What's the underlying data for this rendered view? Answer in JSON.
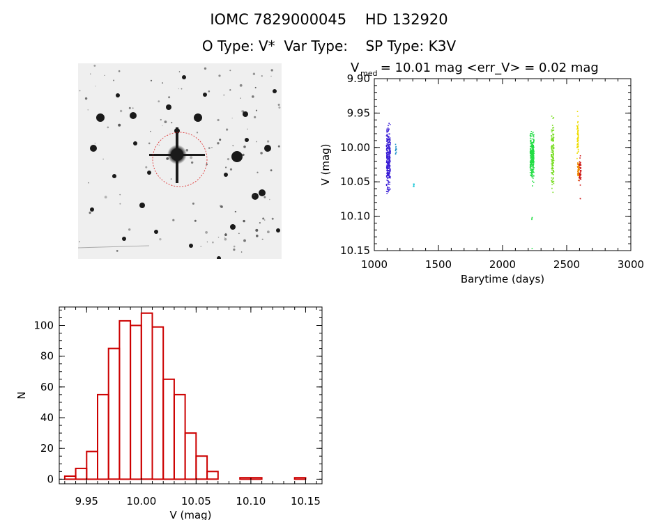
{
  "header": {
    "title": "IOMC 7829000045    HD 132920",
    "subtitle": "O Type: V*  Var Type:    SP Type: K3V"
  },
  "chart_data": [
    {
      "type": "scatter",
      "title_main": "V",
      "title_sub": "med",
      "title_rest": " = 10.01 mag <err_V> = 0.02 mag",
      "xlabel": "Barytime (days)",
      "ylabel": "V (mag)",
      "xlim": [
        1000,
        3000
      ],
      "ylim": [
        10.15,
        9.9
      ],
      "y_inverted": true,
      "xticks": [
        1000,
        1500,
        2000,
        2500,
        3000
      ],
      "yticks": [
        9.9,
        9.95,
        10.0,
        10.05,
        10.1,
        10.15
      ],
      "ytick_labels": [
        "9.90",
        "9.95",
        "10.00",
        "10.05",
        "10.10",
        "10.15"
      ],
      "clusters": [
        {
          "x": [
            1095,
            1125
          ],
          "y": [
            9.955,
            10.075
          ],
          "color": "#3b1fd6",
          "n": 300
        },
        {
          "x": [
            1165,
            1172
          ],
          "y": [
            9.985,
            10.02
          ],
          "color": "#1e90c8",
          "n": 12
        },
        {
          "x": [
            1305,
            1310
          ],
          "y": [
            10.05,
            10.06
          ],
          "color": "#20c8d8",
          "n": 8
        },
        {
          "x": [
            2215,
            2245
          ],
          "y": [
            9.965,
            10.06
          ],
          "color": "#22dd44",
          "n": 260
        },
        {
          "x": [
            2228,
            2232
          ],
          "y": [
            10.1,
            10.108
          ],
          "color": "#22dd44",
          "n": 3
        },
        {
          "x": [
            2230,
            2232
          ],
          "y": [
            10.145,
            10.148
          ],
          "color": "#22dd44",
          "n": 1
        },
        {
          "x": [
            2380,
            2400
          ],
          "y": [
            9.945,
            10.08
          ],
          "color": "#77dd22",
          "n": 140
        },
        {
          "x": [
            2580,
            2592
          ],
          "y": [
            9.94,
            10.03
          ],
          "color": "#eedd00",
          "n": 60
        },
        {
          "x": [
            2585,
            2600
          ],
          "y": [
            10.015,
            10.05
          ],
          "color": "#ee8800",
          "n": 50
        },
        {
          "x": [
            2598,
            2612
          ],
          "y": [
            10.005,
            10.06
          ],
          "color": "#cc1111",
          "n": 40
        },
        {
          "x": [
            2605,
            2610
          ],
          "y": [
            10.072,
            10.077
          ],
          "color": "#cc1111",
          "n": 2
        }
      ]
    },
    {
      "type": "bar",
      "xlabel": "V (mag)",
      "ylabel": "N",
      "xlim": [
        9.925,
        10.165
      ],
      "ylim": [
        -3,
        112
      ],
      "xticks": [
        9.95,
        10.0,
        10.05,
        10.1,
        10.15
      ],
      "xtick_labels": [
        "9.95",
        "10.00",
        "10.05",
        "10.10",
        "10.15"
      ],
      "yticks": [
        0,
        20,
        40,
        60,
        80,
        100
      ],
      "bin_width": 0.01,
      "bin_centers": [
        9.935,
        9.945,
        9.955,
        9.965,
        9.975,
        9.985,
        9.995,
        10.005,
        10.015,
        10.025,
        10.035,
        10.045,
        10.055,
        10.065,
        10.075,
        10.085,
        10.095,
        10.105,
        10.115,
        10.125,
        10.135,
        10.145,
        10.155
      ],
      "values": [
        2,
        7,
        18,
        55,
        85,
        103,
        100,
        108,
        99,
        65,
        55,
        30,
        15,
        5,
        0,
        0,
        1,
        1,
        0,
        0,
        0,
        1,
        0
      ],
      "color": "#cc0000"
    }
  ]
}
